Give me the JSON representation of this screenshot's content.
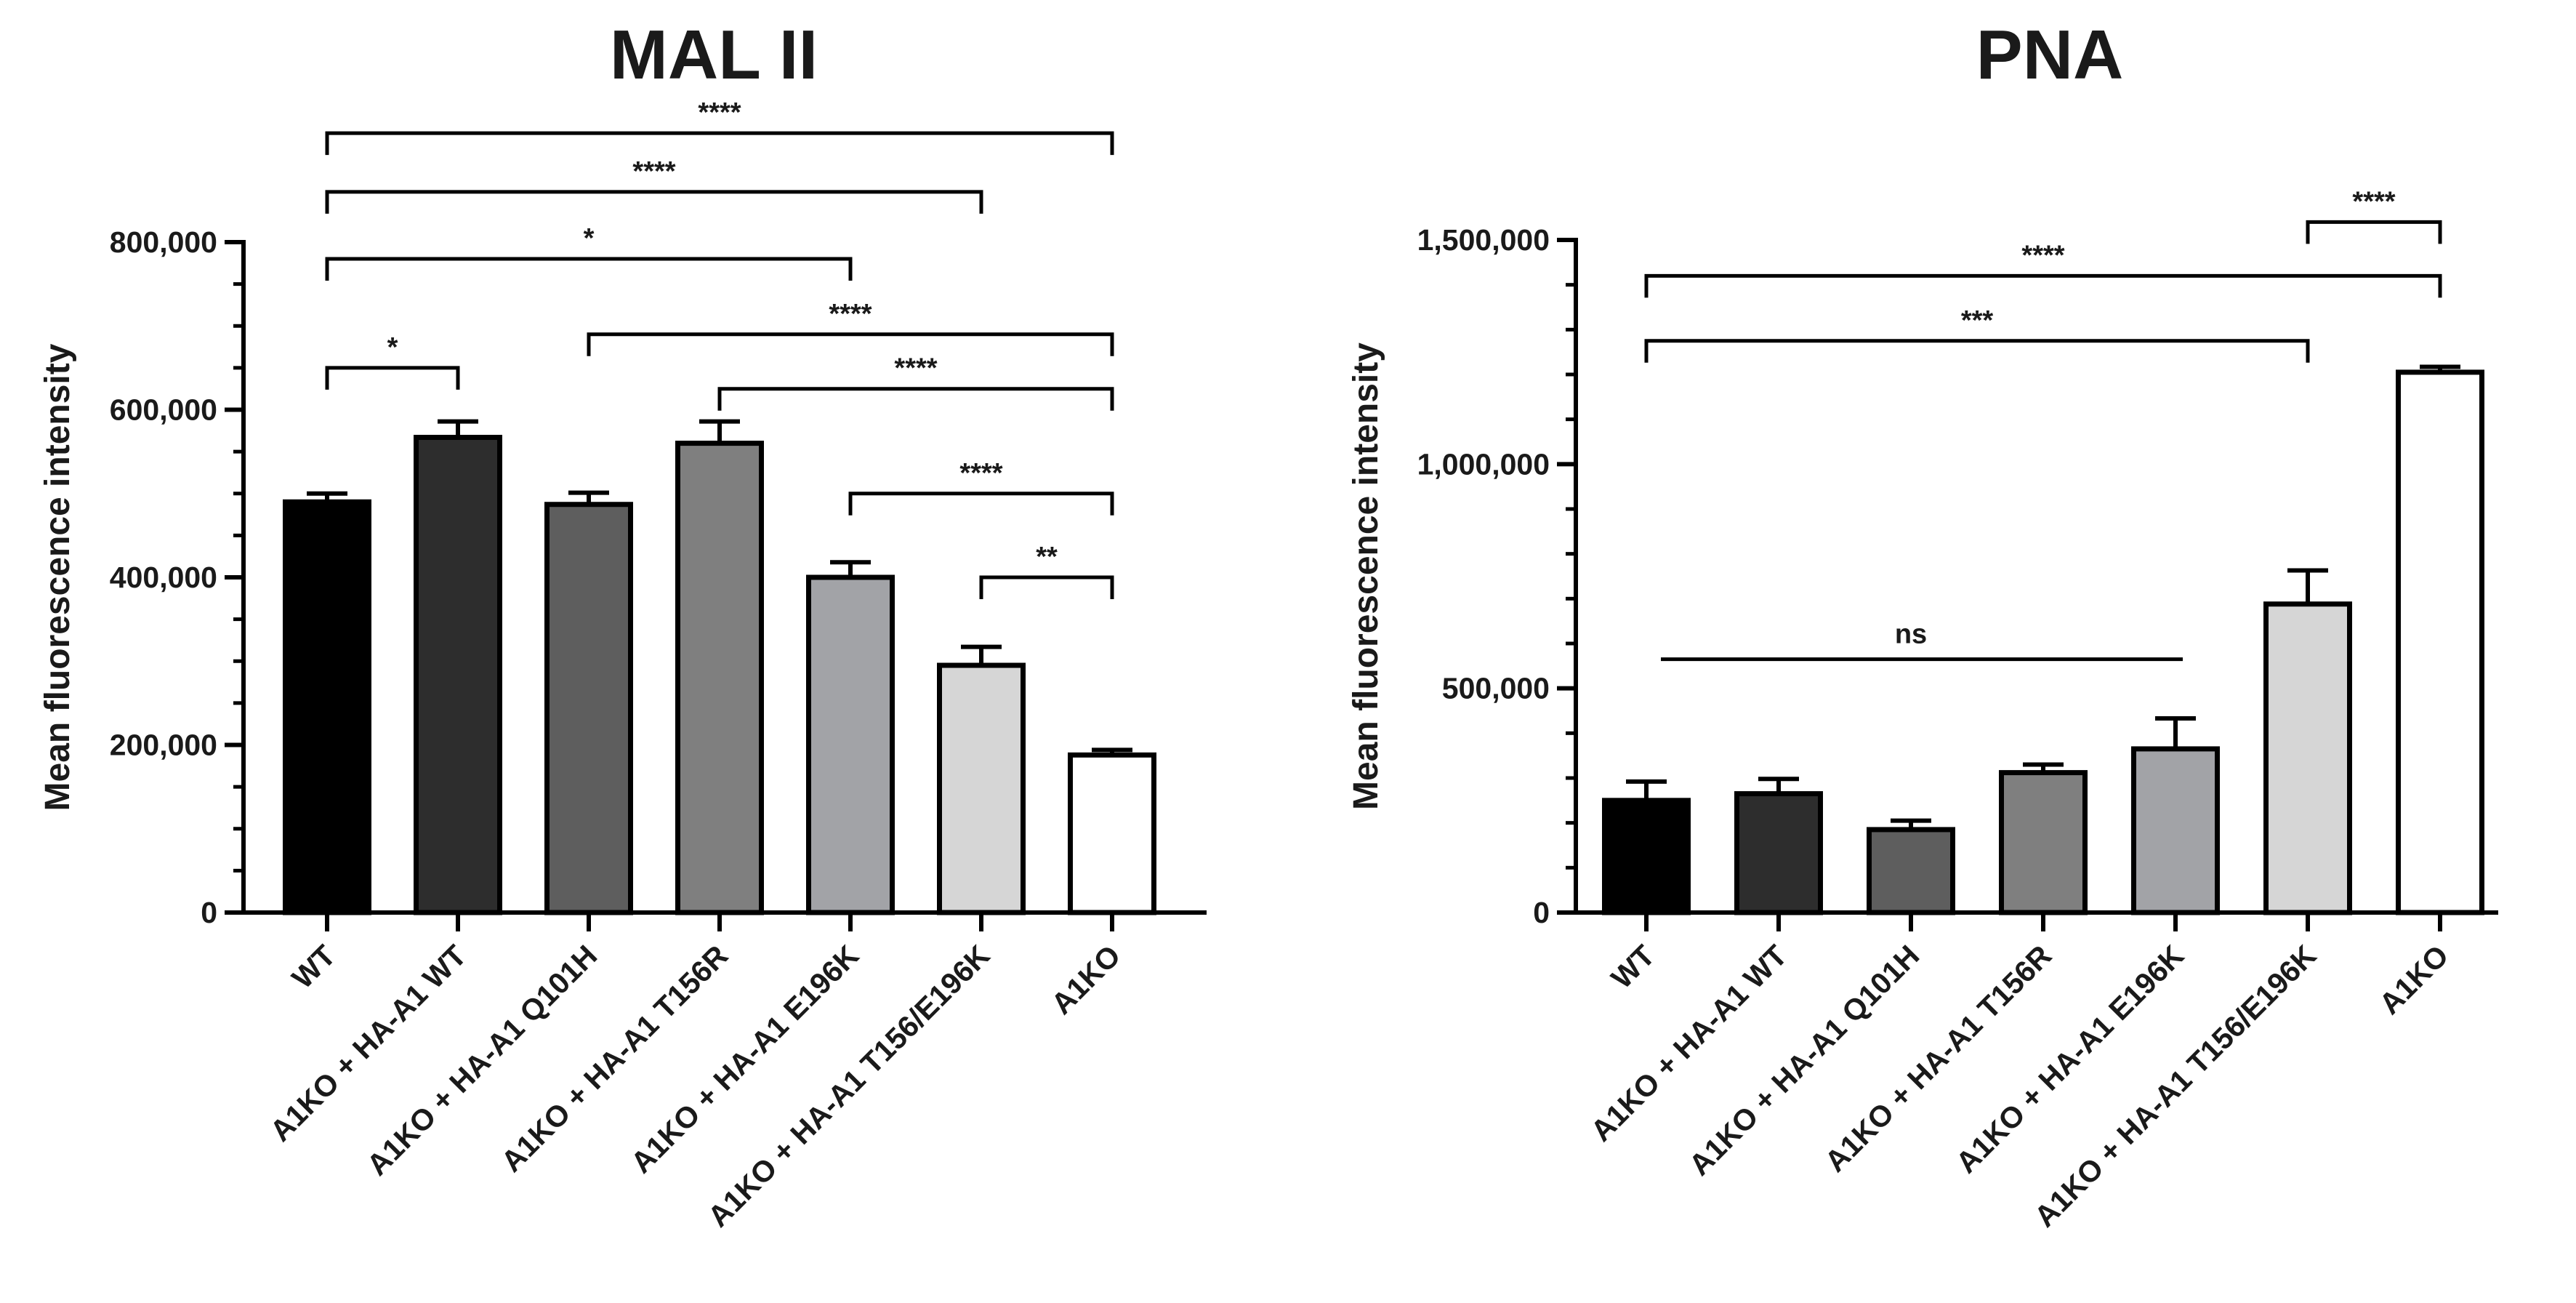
{
  "chart_data": [
    {
      "type": "bar",
      "title": "MAL II",
      "xlabel": "",
      "ylabel": "Mean fluorescence intensity",
      "ylim": [
        0,
        800000
      ],
      "yticks": [
        {
          "value": 0,
          "label": "0"
        },
        {
          "value": 200000,
          "label": "200,000"
        },
        {
          "value": 400000,
          "label": "400,000"
        },
        {
          "value": 600000,
          "label": "600,000"
        },
        {
          "value": 800000,
          "label": "800,000"
        }
      ],
      "categories": [
        "WT",
        "A1KO + HA-A1 WT",
        "A1KO + HA-A1 Q101H",
        "A1KO + HA-A1 T156R",
        "A1KO + HA-A1 E196K",
        "A1KO + HA-A1 T156/E196K",
        "A1KO"
      ],
      "values": [
        490000,
        567000,
        487000,
        560000,
        400000,
        295000,
        188000
      ],
      "errors": [
        10000,
        19000,
        14000,
        26000,
        18000,
        22000,
        6000
      ],
      "colors": [
        "#000000",
        "#2d2d2d",
        "#5e5e5e",
        "#7f7f7f",
        "#a2a3a7",
        "#d6d6d6",
        "#ffffff"
      ],
      "significance": [
        {
          "from": 0,
          "to": 6,
          "label": "****",
          "y": 930000
        },
        {
          "from": 0,
          "to": 5,
          "label": "****",
          "y": 860000
        },
        {
          "from": 0,
          "to": 4,
          "label": "*",
          "y": 780000
        },
        {
          "from": 0,
          "to": 1,
          "label": "*",
          "y": 650000
        },
        {
          "from": 2,
          "to": 6,
          "label": "****",
          "y": 690000
        },
        {
          "from": 3,
          "to": 6,
          "label": "****",
          "y": 625000
        },
        {
          "from": 4,
          "to": 6,
          "label": "****",
          "y": 500000
        },
        {
          "from": 5,
          "to": 6,
          "label": "**",
          "y": 400000
        }
      ]
    },
    {
      "type": "bar",
      "title": "PNA",
      "xlabel": "",
      "ylabel": "Mean fluorescence intensity",
      "ylim": [
        0,
        1500000
      ],
      "yticks": [
        {
          "value": 0,
          "label": "0"
        },
        {
          "value": 500000,
          "label": "500,000"
        },
        {
          "value": 1000000,
          "label": "1,000,000"
        },
        {
          "value": 1500000,
          "label": "1,500,000"
        }
      ],
      "categories": [
        "WT",
        "A1KO + HA-A1 WT",
        "A1KO + HA-A1 Q101H",
        "A1KO + HA-A1 T156R",
        "A1KO + HA-A1 E196K",
        "A1KO + HA-A1 T156/E196K",
        "A1KO"
      ],
      "values": [
        250000,
        265000,
        185000,
        312000,
        365000,
        688000,
        1205000
      ],
      "errors": [
        42000,
        33000,
        20000,
        18000,
        68000,
        75000,
        12000
      ],
      "colors": [
        "#000000",
        "#2d2d2d",
        "#5e5e5e",
        "#7f7f7f",
        "#a2a3a7",
        "#d6d6d6",
        "#ffffff"
      ],
      "significance": [
        {
          "from": 5,
          "to": 6,
          "label": "****",
          "y": 1540000
        },
        {
          "from": 0,
          "to": 6,
          "label": "****",
          "y": 1420000
        },
        {
          "from": 0,
          "to": 5,
          "label": "***",
          "y": 1275000
        },
        {
          "from": 0,
          "to": 4,
          "label": "ns",
          "y": 565000,
          "style": "line"
        }
      ]
    }
  ]
}
